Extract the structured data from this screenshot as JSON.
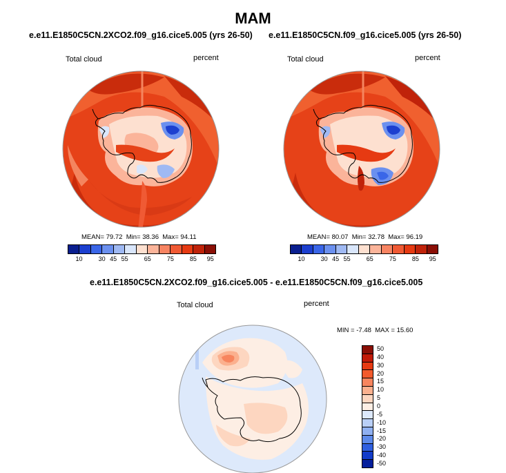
{
  "title": "MAM",
  "panels": [
    {
      "case": "e.e11.E1850C5CN.2XCO2.f09_g16.cice5.005 (yrs 26-50)",
      "variable": "Total cloud",
      "units": "percent",
      "mean_label": "MEAN=",
      "mean": "79.72",
      "min_label": "Min=",
      "min": "38.36",
      "max_label": "Max=",
      "max": "94.11"
    },
    {
      "case": "e.e11.E1850C5CN.f09_g16.cice5.005 (yrs 26-50)",
      "variable": "Total cloud",
      "units": "percent",
      "mean_label": "MEAN=",
      "mean": "80.07",
      "min_label": "Min=",
      "min": "32.78",
      "max_label": "Max=",
      "max": "96.19"
    }
  ],
  "diff_panel": {
    "case": "e.e11.E1850C5CN.2XCO2.f09_g16.cice5.005 - e.e11.E1850C5CN.f09_g16.cice5.005",
    "variable": "Total cloud",
    "units": "percent",
    "min_label": "MIN =",
    "min": "-7.48",
    "max_label": "MAX =",
    "max": "15.60"
  },
  "colorbar_main": {
    "colors": [
      "#0a1f8f",
      "#1c3fcf",
      "#3a66e8",
      "#6b90ef",
      "#9fb9f3",
      "#d9e6fb",
      "#fde0d0",
      "#fbb49a",
      "#f78462",
      "#f05a34",
      "#e63a12",
      "#c0230a",
      "#8a0f06"
    ],
    "tick_labels": [
      "10",
      "30",
      "45",
      "55",
      "65",
      "75",
      "85",
      "95"
    ]
  },
  "colorbar_diff": {
    "colors": [
      "#8a0f06",
      "#c21a08",
      "#e63a12",
      "#f25a2c",
      "#f7855e",
      "#fbb08e",
      "#fdd6c0",
      "#fdeee4",
      "#dde9fb",
      "#b9cff6",
      "#8fb0f1",
      "#5d8aea",
      "#2f5fe0",
      "#123bc9",
      "#051f9c"
    ],
    "tick_labels": [
      "50",
      "40",
      "30",
      "20",
      "15",
      "10",
      "5",
      "0",
      "-5",
      "-10",
      "-15",
      "-20",
      "-30",
      "-40",
      "-50"
    ]
  }
}
